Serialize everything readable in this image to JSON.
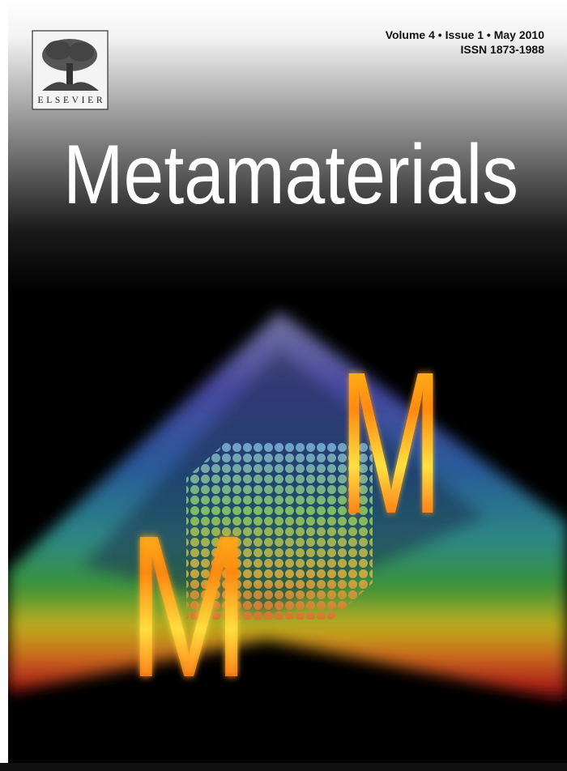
{
  "publisher": "ELSEVIER",
  "issue_line": "Volume 4 • Issue 1 • May 2010",
  "issn": "ISSN 1873-1988",
  "title": "Metamaterials",
  "cover_letters": [
    "M",
    "M"
  ]
}
